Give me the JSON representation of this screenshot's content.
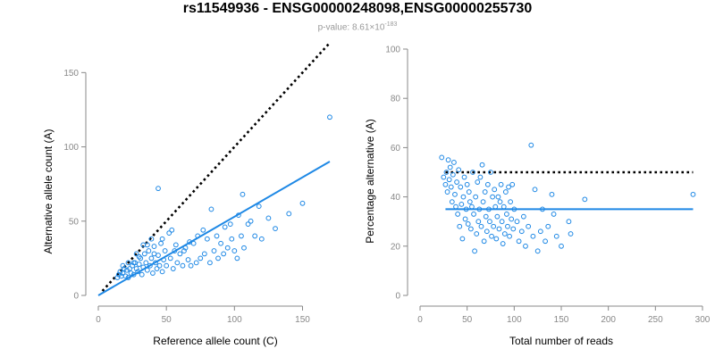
{
  "title": "rs11549936 - ENSG00000248098,ENSG00000255730",
  "subtitle": {
    "prefix": "p-value: 8.61×10",
    "exponent": "-183"
  },
  "colors": {
    "points": "#1e88e5",
    "fit_line": "#1e88e5",
    "reference_line": "#000000",
    "axis": "#888888"
  },
  "chart_data": [
    {
      "type": "scatter",
      "xlabel": "Reference allele count (C)",
      "ylabel": "Alternative allele count (A)",
      "xlim": [
        0,
        172
      ],
      "ylim": [
        0,
        152
      ],
      "xticks": [
        0,
        50,
        100,
        150
      ],
      "yticks": [
        0,
        50,
        100,
        150
      ],
      "grid": false,
      "reference_line": {
        "style": "dotted",
        "slope": 1,
        "intercept": 0,
        "x_range": [
          3,
          170
        ]
      },
      "fit_line": {
        "style": "solid",
        "slope": 0.53,
        "intercept": 0,
        "x_range": [
          0,
          170
        ]
      },
      "points": [
        [
          14,
          12
        ],
        [
          15,
          14
        ],
        [
          16,
          16
        ],
        [
          17,
          13
        ],
        [
          18,
          15
        ],
        [
          20,
          13
        ],
        [
          21,
          17
        ],
        [
          22,
          12
        ],
        [
          23,
          18
        ],
        [
          24,
          15
        ],
        [
          25,
          20
        ],
        [
          26,
          14
        ],
        [
          27,
          22
        ],
        [
          28,
          18
        ],
        [
          29,
          16
        ],
        [
          30,
          21
        ],
        [
          31,
          25
        ],
        [
          32,
          14
        ],
        [
          33,
          19
        ],
        [
          34,
          28
        ],
        [
          35,
          22
        ],
        [
          36,
          17
        ],
        [
          37,
          30
        ],
        [
          38,
          20
        ],
        [
          39,
          25
        ],
        [
          40,
          15
        ],
        [
          41,
          33
        ],
        [
          42,
          22
        ],
        [
          43,
          18
        ],
        [
          44,
          27
        ],
        [
          45,
          20
        ],
        [
          46,
          35
        ],
        [
          47,
          16
        ],
        [
          48,
          24
        ],
        [
          49,
          30
        ],
        [
          50,
          20
        ],
        [
          52,
          42
        ],
        [
          53,
          25
        ],
        [
          55,
          18
        ],
        [
          56,
          30
        ],
        [
          58,
          22
        ],
        [
          60,
          28
        ],
        [
          62,
          20
        ],
        [
          64,
          32
        ],
        [
          66,
          24
        ],
        [
          68,
          20
        ],
        [
          70,
          35
        ],
        [
          72,
          22
        ],
        [
          75,
          25
        ],
        [
          78,
          28
        ],
        [
          80,
          38
        ],
        [
          82,
          22
        ],
        [
          85,
          30
        ],
        [
          88,
          25
        ],
        [
          90,
          35
        ],
        [
          92,
          28
        ],
        [
          95,
          32
        ],
        [
          98,
          38
        ],
        [
          100,
          30
        ],
        [
          102,
          25
        ],
        [
          105,
          40
        ],
        [
          107,
          32
        ],
        [
          110,
          48
        ],
        [
          115,
          40
        ],
        [
          120,
          38
        ],
        [
          125,
          52
        ],
        [
          130,
          45
        ],
        [
          140,
          55
        ],
        [
          150,
          62
        ],
        [
          170,
          120
        ],
        [
          44,
          72
        ],
        [
          106,
          68
        ],
        [
          112,
          50
        ],
        [
          83,
          58
        ],
        [
          97,
          48
        ],
        [
          26,
          22
        ],
        [
          19,
          18
        ],
        [
          33,
          34
        ],
        [
          36,
          34
        ],
        [
          18,
          20
        ],
        [
          22,
          22
        ],
        [
          28,
          28
        ],
        [
          30,
          26
        ],
        [
          39,
          38
        ],
        [
          41,
          28
        ],
        [
          47,
          38
        ],
        [
          54,
          44
        ],
        [
          57,
          34
        ],
        [
          63,
          30
        ],
        [
          67,
          36
        ],
        [
          73,
          40
        ],
        [
          77,
          44
        ],
        [
          87,
          40
        ],
        [
          93,
          46
        ],
        [
          103,
          54
        ],
        [
          118,
          60
        ]
      ]
    },
    {
      "type": "scatter",
      "xlabel": "Total number of reads",
      "ylabel": "Percentage alternative (A)",
      "xlim": [
        0,
        300
      ],
      "ylim": [
        0,
        100
      ],
      "xticks": [
        0,
        50,
        100,
        150,
        200,
        250,
        300
      ],
      "yticks": [
        0,
        20,
        40,
        60,
        80,
        100
      ],
      "grid": false,
      "reference_line": {
        "style": "dotted",
        "y": 50,
        "x_range": [
          27,
          290
        ]
      },
      "fit_line": {
        "style": "solid",
        "y": 35,
        "x_range": [
          27,
          290
        ]
      },
      "points": [
        [
          23,
          56
        ],
        [
          25,
          48
        ],
        [
          27,
          45
        ],
        [
          28,
          50
        ],
        [
          29,
          42
        ],
        [
          30,
          55
        ],
        [
          31,
          47
        ],
        [
          32,
          52
        ],
        [
          33,
          44
        ],
        [
          34,
          38
        ],
        [
          35,
          49
        ],
        [
          36,
          54
        ],
        [
          37,
          41
        ],
        [
          38,
          36
        ],
        [
          39,
          46
        ],
        [
          40,
          33
        ],
        [
          41,
          51
        ],
        [
          42,
          28
        ],
        [
          43,
          44
        ],
        [
          44,
          37
        ],
        [
          45,
          23
        ],
        [
          46,
          40
        ],
        [
          47,
          48
        ],
        [
          48,
          31
        ],
        [
          49,
          35
        ],
        [
          50,
          45
        ],
        [
          51,
          29
        ],
        [
          52,
          42
        ],
        [
          53,
          38
        ],
        [
          54,
          27
        ],
        [
          55,
          36
        ],
        [
          56,
          50
        ],
        [
          57,
          33
        ],
        [
          58,
          18
        ],
        [
          59,
          40
        ],
        [
          60,
          25
        ],
        [
          61,
          46
        ],
        [
          62,
          30
        ],
        [
          63,
          35
        ],
        [
          64,
          48
        ],
        [
          65,
          28
        ],
        [
          66,
          53
        ],
        [
          67,
          38
        ],
        [
          68,
          22
        ],
        [
          69,
          42
        ],
        [
          70,
          32
        ],
        [
          71,
          26
        ],
        [
          72,
          45
        ],
        [
          73,
          35
        ],
        [
          74,
          30
        ],
        [
          75,
          50
        ],
        [
          76,
          24
        ],
        [
          77,
          40
        ],
        [
          78,
          28
        ],
        [
          79,
          43
        ],
        [
          80,
          36
        ],
        [
          81,
          23
        ],
        [
          82,
          32
        ],
        [
          83,
          40
        ],
        [
          84,
          27
        ],
        [
          85,
          38
        ],
        [
          86,
          45
        ],
        [
          87,
          30
        ],
        [
          88,
          21
        ],
        [
          89,
          36
        ],
        [
          90,
          25
        ],
        [
          91,
          42
        ],
        [
          92,
          33
        ],
        [
          93,
          28
        ],
        [
          94,
          44
        ],
        [
          95,
          24
        ],
        [
          96,
          38
        ],
        [
          97,
          31
        ],
        [
          98,
          45
        ],
        [
          99,
          27
        ],
        [
          100,
          35
        ],
        [
          103,
          30
        ],
        [
          105,
          22
        ],
        [
          108,
          26
        ],
        [
          110,
          32
        ],
        [
          112,
          20
        ],
        [
          115,
          28
        ],
        [
          118,
          61
        ],
        [
          120,
          24
        ],
        [
          122,
          43
        ],
        [
          125,
          18
        ],
        [
          128,
          26
        ],
        [
          130,
          35
        ],
        [
          133,
          22
        ],
        [
          136,
          28
        ],
        [
          140,
          41
        ],
        [
          142,
          33
        ],
        [
          145,
          24
        ],
        [
          150,
          20
        ],
        [
          158,
          30
        ],
        [
          160,
          25
        ],
        [
          175,
          39
        ],
        [
          290,
          41
        ]
      ]
    }
  ]
}
